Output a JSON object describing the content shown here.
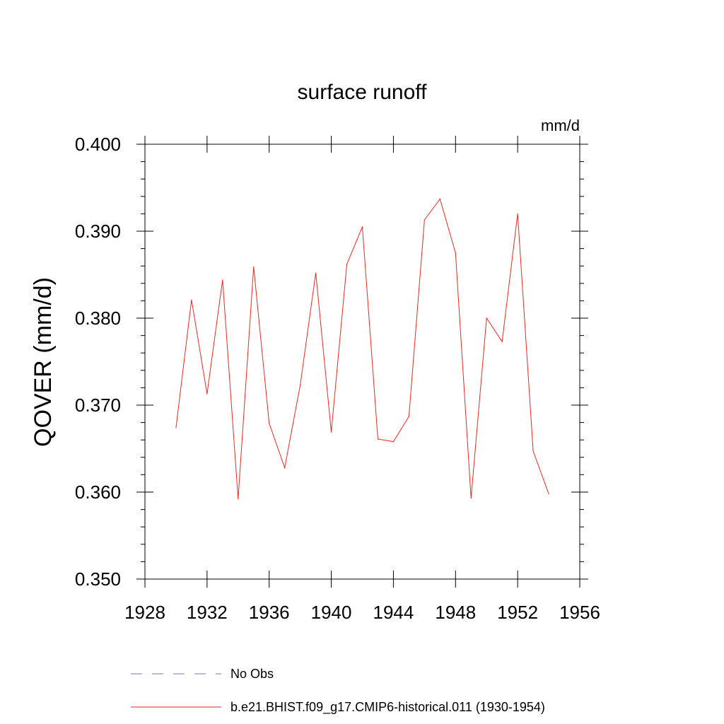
{
  "chart_data": {
    "type": "line",
    "title": "surface runoff",
    "units_label": "mm/d",
    "ylabel": "QOVER  (mm/d)",
    "xlabel": "",
    "xlim": [
      1928,
      1956
    ],
    "ylim": [
      0.35,
      0.4
    ],
    "x_ticks": [
      1928,
      1932,
      1936,
      1940,
      1944,
      1948,
      1952,
      1956
    ],
    "x_tick_labels": [
      "1928",
      "1932",
      "1936",
      "1940",
      "1944",
      "1948",
      "1952",
      "1956"
    ],
    "y_ticks": [
      0.35,
      0.36,
      0.37,
      0.38,
      0.39,
      0.4
    ],
    "y_tick_labels": [
      "0.350",
      "0.360",
      "0.370",
      "0.380",
      "0.390",
      "0.400"
    ],
    "grid": false,
    "legend_position": "bottom",
    "series": [
      {
        "name": "b.e21.BHIST.f09_g17.CMIP6-historical.011 (1930-1954)",
        "color": "#e8281e",
        "style": "solid",
        "x": [
          1930,
          1931,
          1932,
          1933,
          1934,
          1935,
          1936,
          1937,
          1938,
          1939,
          1940,
          1941,
          1942,
          1943,
          1944,
          1945,
          1946,
          1947,
          1948,
          1949,
          1950,
          1951,
          1952,
          1953,
          1954
        ],
        "values": [
          0.3674,
          0.3821,
          0.3713,
          0.3844,
          0.3592,
          0.3859,
          0.3679,
          0.3628,
          0.3723,
          0.3852,
          0.3669,
          0.3862,
          0.3905,
          0.3661,
          0.3658,
          0.3687,
          0.3913,
          0.3937,
          0.3875,
          0.3593,
          0.38,
          0.3773,
          0.392,
          0.3647,
          0.3598
        ]
      }
    ],
    "legend": [
      {
        "label": "No Obs",
        "color": "#7a6fd0",
        "style": "dashed"
      },
      {
        "label": "b.e21.BHIST.f09_g17.CMIP6-historical.011 (1930-1954)",
        "color": "#e8281e",
        "style": "solid"
      }
    ]
  }
}
